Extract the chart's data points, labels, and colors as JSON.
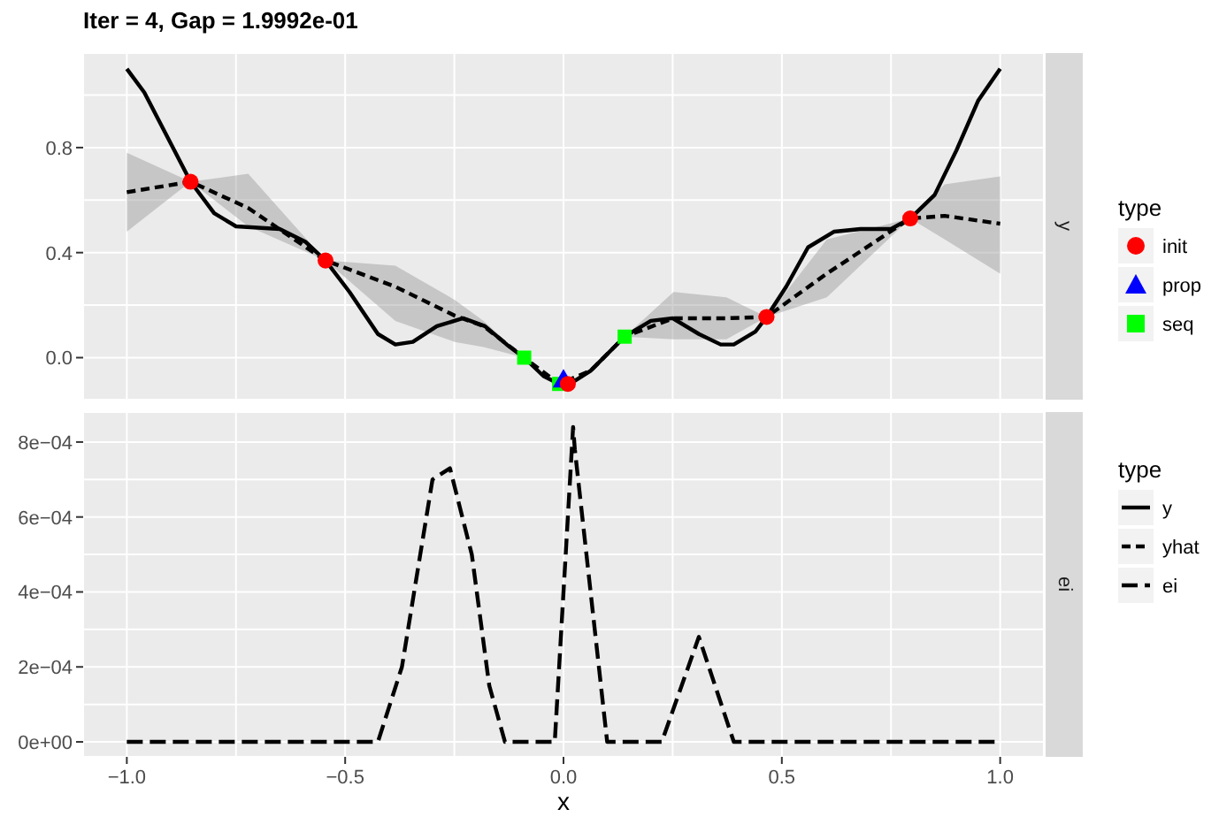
{
  "chart_data": [
    {
      "type": "line",
      "title": "Iter = 4, Gap = 1.9992e-01",
      "subtitle": "y",
      "legend_title": "type",
      "legend": "right",
      "grid": true,
      "tick_labels": "y",
      "xlim": [
        -1.1,
        1.1
      ],
      "xticks": [
        -1,
        -0.75,
        -0.5,
        -0.25,
        0,
        0.25,
        0.5,
        0.75,
        1
      ],
      "ylim": [
        -0.16,
        1.16
      ],
      "yticks": [
        {
          "value": 0,
          "label": "0.0"
        },
        {
          "value": 0.2,
          "label": null
        },
        {
          "value": 0.4,
          "label": "0.4"
        },
        {
          "value": 0.6,
          "label": null
        },
        {
          "value": 0.8,
          "label": "0.8"
        },
        {
          "value": 1.0,
          "label": null
        }
      ],
      "series": [
        {
          "name": "y",
          "color": "#000000",
          "line_style": "solid",
          "x": [
            -1,
            -0.96,
            -0.854,
            -0.8,
            -0.75,
            -0.65,
            -0.59,
            -0.545,
            -0.49,
            -0.425,
            -0.385,
            -0.345,
            -0.29,
            -0.23,
            -0.18,
            -0.13,
            -0.09,
            -0.046,
            -0.01,
            0.015,
            0.062,
            0.14,
            0.2,
            0.25,
            0.31,
            0.36,
            0.39,
            0.44,
            0.465,
            0.51,
            0.56,
            0.62,
            0.68,
            0.75,
            0.794,
            0.85,
            0.9,
            0.95,
            1.0
          ],
          "values": [
            1.1,
            1.01,
            0.67,
            0.55,
            0.5,
            0.49,
            0.44,
            0.37,
            0.25,
            0.09,
            0.05,
            0.06,
            0.12,
            0.15,
            0.12,
            0.05,
            0.0,
            -0.07,
            -0.1,
            -0.1,
            -0.05,
            0.08,
            0.14,
            0.15,
            0.09,
            0.05,
            0.05,
            0.1,
            0.155,
            0.27,
            0.42,
            0.48,
            0.49,
            0.49,
            0.53,
            0.62,
            0.79,
            0.98,
            1.1
          ]
        },
        {
          "name": "yhat",
          "color": "#000000",
          "line_style": "dashed",
          "x": [
            -1,
            -0.854,
            -0.722,
            -0.545,
            -0.385,
            -0.249,
            -0.183,
            -0.09,
            -0.01,
            0.062,
            0.14,
            0.252,
            0.373,
            0.465,
            0.603,
            0.794,
            0.873,
            1.0
          ],
          "values": [
            0.63,
            0.67,
            0.57,
            0.37,
            0.27,
            0.16,
            0.12,
            0.0,
            -0.1,
            -0.05,
            0.08,
            0.15,
            0.15,
            0.155,
            0.32,
            0.53,
            0.54,
            0.51
          ],
          "lower": [
            0.48,
            0.67,
            0.5,
            0.37,
            0.14,
            0.06,
            0.04,
            0.0,
            -0.1,
            -0.05,
            0.08,
            0.07,
            0.07,
            0.155,
            0.23,
            0.53,
            0.45,
            0.32
          ],
          "upper": [
            0.78,
            0.67,
            0.7,
            0.37,
            0.35,
            0.22,
            0.14,
            0.0,
            -0.1,
            -0.05,
            0.08,
            0.25,
            0.23,
            0.155,
            0.45,
            0.53,
            0.66,
            0.69
          ]
        },
        {
          "name": "init",
          "type": "scatter",
          "color": "#ff0000",
          "marker": "circle",
          "x": [
            -0.854,
            -0.545,
            0.01,
            0.465,
            0.794
          ],
          "values": [
            0.67,
            0.37,
            -0.1,
            0.155,
            0.53
          ]
        },
        {
          "name": "prop",
          "type": "scatter",
          "color": "#0000ff",
          "marker": "triangle",
          "x": [
            0.0
          ],
          "values": [
            -0.09
          ]
        },
        {
          "name": "seq",
          "type": "scatter",
          "color": "#00ff00",
          "marker": "square",
          "x": [
            -0.09,
            -0.01,
            0.14
          ],
          "values": [
            0.0,
            -0.1,
            0.08
          ]
        }
      ]
    },
    {
      "type": "line",
      "subtitle": "ei",
      "xlabel": "x",
      "legend_title": "type",
      "legend": "right",
      "grid": true,
      "xlim": [
        -1.1,
        1.1
      ],
      "xticks": [
        {
          "value": -1,
          "label": "−1.0"
        },
        {
          "value": -0.75,
          "label": null
        },
        {
          "value": -0.5,
          "label": "−0.5"
        },
        {
          "value": -0.25,
          "label": null
        },
        {
          "value": 0,
          "label": "0.0"
        },
        {
          "value": 0.25,
          "label": null
        },
        {
          "value": 0.5,
          "label": "0.5"
        },
        {
          "value": 0.75,
          "label": null
        },
        {
          "value": 1,
          "label": "1.0"
        }
      ],
      "ylim": [
        -4e-05,
        0.00088
      ],
      "yticks": [
        {
          "value": 0,
          "label": "0e+00"
        },
        {
          "value": 0.0001,
          "label": null
        },
        {
          "value": 0.0002,
          "label": "2e−04"
        },
        {
          "value": 0.0003,
          "label": null
        },
        {
          "value": 0.0004,
          "label": "4e−04"
        },
        {
          "value": 0.0005,
          "label": null
        },
        {
          "value": 0.0006,
          "label": "6e−04"
        },
        {
          "value": 0.0007,
          "label": null
        },
        {
          "value": 0.0008,
          "label": "8e−04"
        }
      ],
      "series": [
        {
          "name": "ei",
          "color": "#000000",
          "line_style": "dashed",
          "x": [
            -1,
            -0.46,
            -0.425,
            -0.37,
            -0.3,
            -0.26,
            -0.21,
            -0.17,
            -0.134,
            -0.02,
            0.022,
            0.026,
            0.1,
            0.225,
            0.31,
            0.39,
            0.42,
            0.955,
            1.0
          ],
          "values": [
            0,
            0,
            0,
            0.0002,
            0.0007,
            0.00073,
            0.0005,
            0.00015,
            0,
            0,
            0.00084,
            0.00078,
            0,
            0,
            0.00028,
            0,
            0,
            0,
            0
          ]
        }
      ]
    }
  ]
}
